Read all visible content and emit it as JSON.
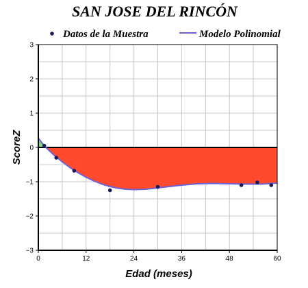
{
  "chart_data": {
    "type": "line",
    "title": "SAN JOSE DEL RINCÓN",
    "xlabel": "Edad (meses)",
    "ylabel": "ScoreZ",
    "xlim": [
      0,
      60
    ],
    "ylim": [
      -3,
      3
    ],
    "xticks": [
      0,
      12,
      24,
      36,
      48,
      60
    ],
    "yticks": [
      -3,
      -2,
      -1,
      0,
      1,
      2,
      3
    ],
    "grid": true,
    "legend_position": "top",
    "colors": {
      "points": "#1a1a5e",
      "model_line": "#6a63d8",
      "fill_below": "#ff4a2e",
      "fill_above": "#7fd87a",
      "grid": "#c8c8c8",
      "zero_line": "#000000"
    },
    "series": [
      {
        "name": "Datos de la Muestra",
        "kind": "scatter",
        "x": [
          1.5,
          4.5,
          9,
          18,
          30,
          51,
          55,
          58.5
        ],
        "y": [
          0.05,
          -0.3,
          -0.68,
          -1.25,
          -1.15,
          -1.1,
          -1.02,
          -1.1
        ]
      },
      {
        "name": "Modelo Polinomial",
        "kind": "line",
        "x": [
          0,
          1,
          2,
          4,
          6,
          8,
          10,
          12,
          14,
          16,
          18,
          20,
          22,
          24,
          27,
          30,
          33,
          36,
          40,
          44,
          48,
          52,
          56,
          60
        ],
        "y": [
          0.27,
          0.12,
          -0.01,
          -0.23,
          -0.42,
          -0.59,
          -0.74,
          -0.87,
          -0.98,
          -1.07,
          -1.14,
          -1.19,
          -1.22,
          -1.23,
          -1.22,
          -1.18,
          -1.14,
          -1.1,
          -1.06,
          -1.05,
          -1.06,
          -1.07,
          -1.07,
          -1.04
        ]
      }
    ]
  }
}
